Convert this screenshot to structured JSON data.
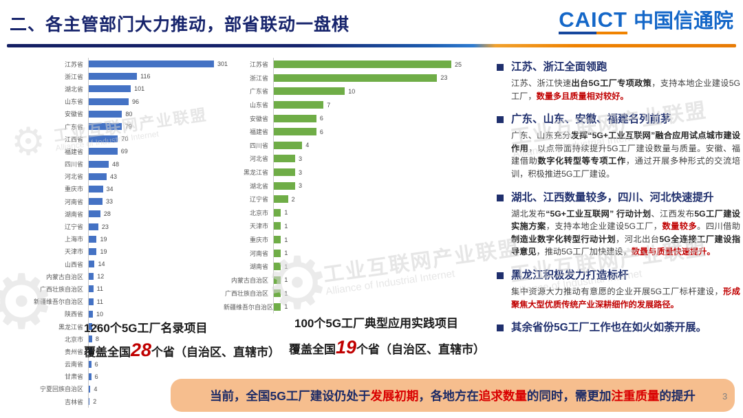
{
  "header": {
    "title": "二、各主管部门大力推动，部省联动一盘棋",
    "logo": {
      "caict": "CAICT",
      "cn": "中国信通院"
    }
  },
  "chart_data": [
    {
      "type": "bar",
      "orientation": "horizontal",
      "bar_color": "#4472c4",
      "max": 301,
      "categories": [
        "江苏省",
        "浙江省",
        "湖北省",
        "山东省",
        "安徽省",
        "广东省",
        "江西省",
        "福建省",
        "四川省",
        "河北省",
        "重庆市",
        "河南省",
        "湖南省",
        "辽宁省",
        "上海市",
        "天津市",
        "山西省",
        "内蒙古自治区",
        "广西壮族自治区",
        "新疆维吾尔自治区",
        "陕西省",
        "黑龙江省",
        "北京市",
        "贵州省",
        "云南省",
        "甘肃省",
        "宁夏回族自治区",
        "吉林省"
      ],
      "values": [
        301,
        116,
        101,
        96,
        80,
        79,
        70,
        69,
        48,
        43,
        34,
        33,
        28,
        23,
        19,
        19,
        14,
        12,
        11,
        11,
        10,
        9,
        8,
        8,
        6,
        6,
        4,
        2
      ],
      "caption_title": "1260个5G工厂名录项目",
      "caption_coverage": [
        {
          "text": "覆盖全国",
          "style": "normal"
        },
        {
          "text": "28",
          "style": "red-num"
        },
        {
          "text": "个省（自治区、直辖市）",
          "style": "normal"
        }
      ]
    },
    {
      "type": "bar",
      "orientation": "horizontal",
      "bar_color": "#6fad47",
      "max": 25,
      "categories": [
        "江苏省",
        "浙江省",
        "广东省",
        "山东省",
        "安徽省",
        "福建省",
        "四川省",
        "河北省",
        "黑龙江省",
        "湖北省",
        "辽宁省",
        "北京市",
        "天津市",
        "重庆市",
        "河南省",
        "湖南省",
        "内蒙古自治区",
        "广西壮族自治区",
        "新疆维吾尔自治区"
      ],
      "values": [
        25,
        23,
        10,
        7,
        6,
        6,
        4,
        3,
        3,
        3,
        2,
        1,
        1,
        1,
        1,
        1,
        1,
        1,
        1
      ],
      "caption_title": "100个5G工厂典型应用实践项目",
      "caption_coverage": [
        {
          "text": "覆盖全国",
          "style": "normal"
        },
        {
          "text": "19",
          "style": "red-num"
        },
        {
          "text": "个省（自治区、直辖市）",
          "style": "normal"
        }
      ]
    }
  ],
  "bullets": [
    {
      "title": "江苏、浙江全面领跑",
      "body": [
        {
          "text": "江苏、浙江快速",
          "style": "normal"
        },
        {
          "text": "出台5G工厂专项政策",
          "style": "bold"
        },
        {
          "text": "，支持本地企业建设5G工厂，",
          "style": "normal"
        },
        {
          "text": "数量多且质量相对较好。",
          "style": "red"
        }
      ]
    },
    {
      "title": "广东、山东、安徽、福建名列前茅",
      "body": [
        {
          "text": "广东、山东充分",
          "style": "normal"
        },
        {
          "text": "发挥“5G+工业互联网”融合应用试点城市建设作用",
          "style": "bold"
        },
        {
          "text": "，以点带面持续提升5G工厂建设数量与质量。安徽、福建借助",
          "style": "normal"
        },
        {
          "text": "数字化转型等专项工作",
          "style": "bold"
        },
        {
          "text": "，通过开展多种形式的交流培训，积极推进5G工厂建设。",
          "style": "normal"
        }
      ]
    },
    {
      "title": "湖北、江西数量较多，四川、河北快速提升",
      "body": [
        {
          "text": "湖北发布",
          "style": "normal"
        },
        {
          "text": "“5G+工业互联网” 行动计划",
          "style": "bold"
        },
        {
          "text": "、江西发布",
          "style": "normal"
        },
        {
          "text": "5G工厂建设实施方案",
          "style": "bold"
        },
        {
          "text": "，支持本地企业建设5G工厂，",
          "style": "normal"
        },
        {
          "text": "数量较多",
          "style": "red"
        },
        {
          "text": "。四川借助",
          "style": "normal"
        },
        {
          "text": "制造业数字化转型行动计划",
          "style": "bold"
        },
        {
          "text": "，河北出台",
          "style": "normal"
        },
        {
          "text": "5G全连接工厂建设指导意见",
          "style": "bold"
        },
        {
          "text": "，推动5G工厂加快建设，",
          "style": "normal"
        },
        {
          "text": "数量与质量快速提升。",
          "style": "red"
        }
      ]
    },
    {
      "title": "黑龙江积极发力打造标杆",
      "body": [
        {
          "text": "集中资源大力推动有意愿的企业开展5G工厂标杆建设，",
          "style": "normal"
        },
        {
          "text": "形成聚焦大型优质传统产业深耕细作的发展路径。",
          "style": "red"
        }
      ]
    },
    {
      "title": "其余省份5G工厂工作也在如火如荼开展。",
      "body": []
    }
  ],
  "banner": {
    "segments": [
      {
        "text": "当前，全国5G工厂建设仍处于",
        "style": "normal"
      },
      {
        "text": "发展初期",
        "style": "red"
      },
      {
        "text": "，各地方在",
        "style": "normal"
      },
      {
        "text": "追求数量",
        "style": "red"
      },
      {
        "text": "的同时，需更加",
        "style": "normal"
      },
      {
        "text": "注重质量",
        "style": "red"
      },
      {
        "text": "的提升",
        "style": "normal"
      }
    ]
  },
  "page_number": "3",
  "watermark": {
    "cn": "工业互联网产业联盟",
    "en": "Alliance of Industrial Internet",
    "gear_icon": "⚙"
  }
}
